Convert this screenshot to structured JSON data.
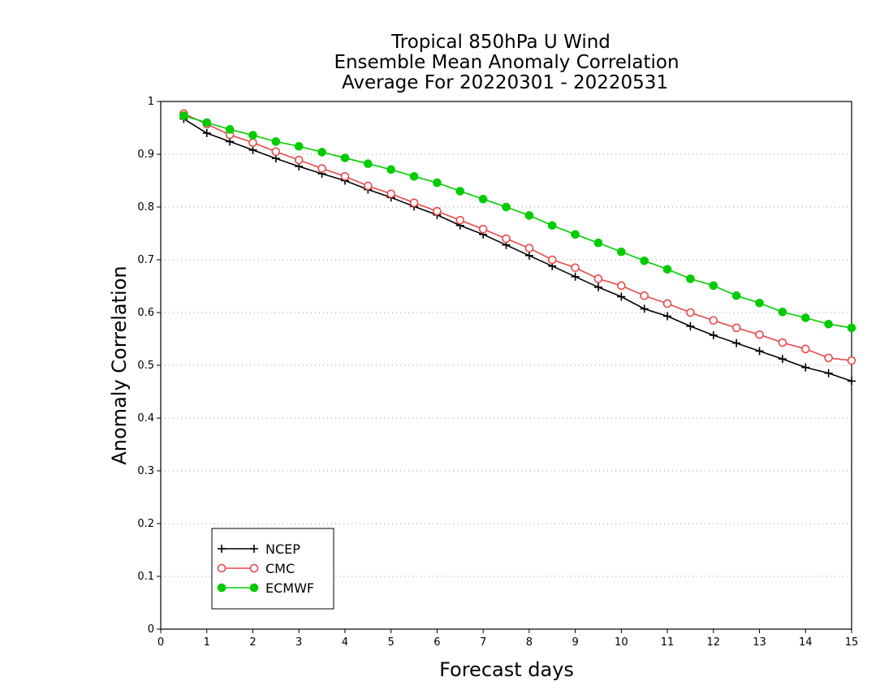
{
  "chart_data": {
    "type": "line",
    "title": [
      "Tropical 850hPa U Wind",
      "Ensemble Mean Anomaly Correlation",
      "Average For 20220301 - 20220531"
    ],
    "xlabel": "Forecast days",
    "ylabel": "Anomaly Correlation",
    "xlim": [
      0,
      15
    ],
    "ylim": [
      0,
      1
    ],
    "xticks": [
      "0",
      "1",
      "2",
      "3",
      "4",
      "5",
      "6",
      "7",
      "8",
      "9",
      "10",
      "11",
      "12",
      "13",
      "14",
      "15"
    ],
    "yticks": [
      "0",
      "0.1",
      "0.2",
      "0.3",
      "0.4",
      "0.5",
      "0.6",
      "0.7",
      "0.8",
      "0.9",
      "1"
    ],
    "grid": "horizontal dotted",
    "legend_position": "bottom-left",
    "x": [
      0.5,
      1,
      1.5,
      2,
      2.5,
      3,
      3.5,
      4,
      4.5,
      5,
      5.5,
      6,
      6.5,
      7,
      7.5,
      8,
      8.5,
      9,
      9.5,
      10,
      10.5,
      11,
      11.5,
      12,
      12.5,
      13,
      13.5,
      14,
      14.5,
      15
    ],
    "series": [
      {
        "name": "NCEP",
        "color": "#000000",
        "marker": "plus",
        "values": [
          0.967,
          0.94,
          0.924,
          0.908,
          0.892,
          0.877,
          0.863,
          0.85,
          0.833,
          0.818,
          0.801,
          0.785,
          0.765,
          0.748,
          0.728,
          0.708,
          0.688,
          0.668,
          0.648,
          0.63,
          0.607,
          0.593,
          0.574,
          0.557,
          0.542,
          0.527,
          0.512,
          0.496,
          0.485,
          0.47
        ]
      },
      {
        "name": "CMC",
        "color": "#e8484a",
        "marker": "open-circle",
        "values": [
          0.977,
          0.957,
          0.937,
          0.922,
          0.905,
          0.889,
          0.873,
          0.858,
          0.84,
          0.825,
          0.808,
          0.792,
          0.775,
          0.758,
          0.74,
          0.722,
          0.7,
          0.685,
          0.664,
          0.651,
          0.632,
          0.617,
          0.6,
          0.585,
          0.571,
          0.558,
          0.543,
          0.531,
          0.514,
          0.509
        ]
      },
      {
        "name": "ECMWF",
        "color": "#00cc00",
        "marker": "filled-circle",
        "values": [
          0.973,
          0.96,
          0.947,
          0.936,
          0.924,
          0.915,
          0.904,
          0.893,
          0.882,
          0.871,
          0.858,
          0.846,
          0.83,
          0.815,
          0.8,
          0.784,
          0.765,
          0.748,
          0.732,
          0.715,
          0.698,
          0.682,
          0.664,
          0.651,
          0.632,
          0.618,
          0.601,
          0.59,
          0.578,
          0.571
        ]
      }
    ]
  }
}
